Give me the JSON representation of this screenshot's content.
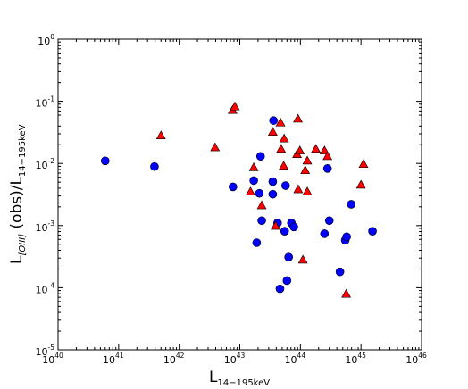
{
  "chart_data": {
    "type": "scatter",
    "title": "",
    "xlabel": {
      "main": "L",
      "sub": "14−195keV"
    },
    "ylabel": {
      "main": "L",
      "sub1": "[OIII]",
      "middle": " (obs)/L",
      "sub2": "14−195keV"
    },
    "xscale": "log",
    "yscale": "log",
    "xlim": [
      1e+40,
      1e+46
    ],
    "ylim": [
      1e-05,
      1
    ],
    "grid": false,
    "legend": "none",
    "x_ticks": [
      {
        "base": "10",
        "exp": "40"
      },
      {
        "base": "10",
        "exp": "41"
      },
      {
        "base": "10",
        "exp": "42"
      },
      {
        "base": "10",
        "exp": "43"
      },
      {
        "base": "10",
        "exp": "44"
      },
      {
        "base": "10",
        "exp": "45"
      },
      {
        "base": "10",
        "exp": "46"
      }
    ],
    "y_ticks": [
      {
        "base": "10",
        "exp": "-5"
      },
      {
        "base": "10",
        "exp": "-4"
      },
      {
        "base": "10",
        "exp": "-3"
      },
      {
        "base": "10",
        "exp": "-2"
      },
      {
        "base": "10",
        "exp": "-1"
      },
      {
        "base": "10",
        "exp": "0"
      }
    ],
    "series": [
      {
        "marker": "circle",
        "color": "#0000ff",
        "points": [
          [
            6e+40,
            0.011
          ],
          [
            3.9e+41,
            0.0089
          ],
          [
            7.7e+42,
            0.0042
          ],
          [
            1.7e+43,
            0.0053
          ],
          [
            2.2e+43,
            0.013
          ],
          [
            3.6e+43,
            0.049
          ],
          [
            2.1e+43,
            0.0033
          ],
          [
            3.5e+43,
            0.0051
          ],
          [
            3.5e+43,
            0.0032
          ],
          [
            5.7e+43,
            0.0044
          ],
          [
            2.3e+43,
            0.0012
          ],
          [
            4.2e+43,
            0.0011
          ],
          [
            5.5e+43,
            0.00081
          ],
          [
            7.1e+43,
            0.0011
          ],
          [
            7.8e+43,
            0.00095
          ],
          [
            1.9e+43,
            0.00053
          ],
          [
            6.4e+43,
            0.00031
          ],
          [
            4.6e+43,
            9.6e-05
          ],
          [
            6e+43,
            0.00013
          ],
          [
            2.5e+44,
            0.00074
          ],
          [
            2.8e+44,
            0.0083
          ],
          [
            3e+44,
            0.0012
          ],
          [
            4.5e+44,
            0.00018
          ],
          [
            5.5e+44,
            0.00058
          ],
          [
            5.8e+44,
            0.00066
          ],
          [
            6.9e+44,
            0.0022
          ],
          [
            1.55e+45,
            0.00081
          ]
        ]
      },
      {
        "marker": "triangle",
        "color": "#ff0000",
        "points": [
          [
            5e+41,
            0.028
          ],
          [
            3.9e+42,
            0.018
          ],
          [
            7.6e+42,
            0.072
          ],
          [
            8.3e+42,
            0.082
          ],
          [
            1.5e+43,
            0.0035
          ],
          [
            1.7e+43,
            0.0086
          ],
          [
            2.3e+43,
            0.0021
          ],
          [
            3.5e+43,
            0.032
          ],
          [
            3.9e+43,
            0.00098
          ],
          [
            4.7e+43,
            0.045
          ],
          [
            4.8e+43,
            0.017
          ],
          [
            5.4e+43,
            0.025
          ],
          [
            5.3e+43,
            0.0091
          ],
          [
            8.8e+43,
            0.014
          ],
          [
            9.1e+43,
            0.052
          ],
          [
            9.8e+43,
            0.016
          ],
          [
            9.2e+43,
            0.0038
          ],
          [
            1.1e+44,
            0.00028
          ],
          [
            1.2e+44,
            0.0077
          ],
          [
            1.3e+44,
            0.011
          ],
          [
            1.3e+44,
            0.0035
          ],
          [
            1.8e+44,
            0.017
          ],
          [
            2.5e+44,
            0.016
          ],
          [
            2.8e+44,
            0.013
          ],
          [
            5.7e+44,
            7.9e-05
          ],
          [
            1e+45,
            0.0045
          ],
          [
            1.1e+45,
            0.0097
          ]
        ]
      }
    ]
  }
}
